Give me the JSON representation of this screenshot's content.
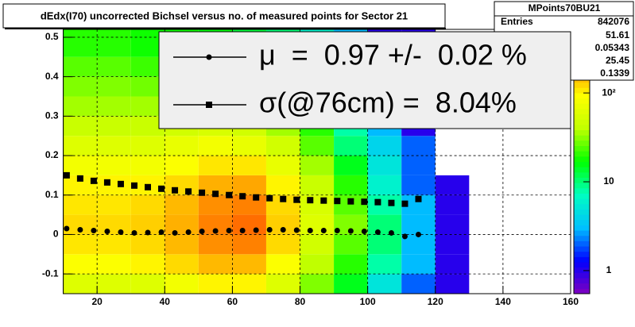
{
  "chart_data": {
    "type": "heatmap",
    "title": "dEdx(I70) uncorrected Bichsel versus no. of measured points for Sector 21",
    "xbins": [
      10,
      20,
      30,
      40,
      50,
      60,
      70,
      80,
      90,
      100,
      110,
      120,
      130
    ],
    "ybins": [
      -0.15,
      -0.1,
      -0.05,
      0,
      0.05,
      0.1,
      0.15,
      0.2,
      0.25,
      0.3,
      0.35,
      0.4,
      0.45,
      0.52
    ],
    "counts": [
      [
        60,
        60,
        60,
        80,
        100,
        100,
        60,
        30,
        15,
        5,
        2,
        1
      ],
      [
        90,
        90,
        100,
        120,
        150,
        150,
        90,
        40,
        20,
        8,
        3,
        1
      ],
      [
        110,
        110,
        120,
        150,
        200,
        220,
        120,
        50,
        25,
        10,
        3,
        1
      ],
      [
        120,
        120,
        130,
        160,
        220,
        250,
        130,
        60,
        30,
        10,
        3,
        1
      ],
      [
        110,
        110,
        120,
        150,
        200,
        220,
        120,
        55,
        25,
        8,
        3,
        1
      ],
      [
        100,
        100,
        100,
        120,
        160,
        170,
        100,
        45,
        20,
        6,
        2,
        1
      ],
      [
        80,
        80,
        80,
        90,
        110,
        110,
        70,
        35,
        15,
        5,
        2,
        0
      ],
      [
        60,
        60,
        60,
        70,
        80,
        70,
        50,
        25,
        10,
        4,
        2,
        0
      ],
      [
        45,
        45,
        45,
        50,
        55,
        50,
        35,
        20,
        8,
        3,
        1,
        0
      ],
      [
        35,
        35,
        35,
        40,
        40,
        35,
        25,
        15,
        6,
        2,
        1,
        0
      ],
      [
        30,
        30,
        28,
        30,
        30,
        25,
        18,
        10,
        5,
        2,
        1,
        0
      ],
      [
        25,
        25,
        22,
        22,
        22,
        18,
        13,
        8,
        4,
        2,
        1,
        0
      ],
      [
        20,
        20,
        18,
        18,
        16,
        13,
        10,
        6,
        3,
        1,
        1,
        0
      ]
    ],
    "palette": [
      "#8000c0",
      "#0000ff",
      "#00c0ff",
      "#00ffc0",
      "#00ff00",
      "#c0ff00",
      "#ffff00",
      "#ff8000",
      "#ff0000"
    ],
    "z_log": true,
    "zlim": [
      0.55,
      520
    ],
    "zticks": [
      1,
      10,
      {
        "value": 100,
        "label": "10²"
      }
    ],
    "xlim": [
      10,
      160
    ],
    "xticks": [
      20,
      40,
      60,
      80,
      100,
      120,
      140,
      160
    ],
    "ylim": [
      -0.15,
      0.52
    ],
    "yticks": [
      -0.1,
      0,
      0.1,
      0.2,
      0.3,
      0.4,
      0.5
    ],
    "grid": true,
    "x": [
      11,
      15,
      19,
      23,
      27,
      31,
      35,
      39,
      43,
      47,
      51,
      55,
      59,
      63,
      67,
      71,
      75,
      79,
      83,
      87,
      91,
      95,
      99,
      103,
      107,
      111,
      115
    ],
    "series": [
      {
        "name": "μ  =  0.97 +/-  0.02 %",
        "marker": "circle",
        "color": "#000000",
        "values": [
          0.015,
          0.012,
          0.01,
          0.008,
          0.006,
          0.004,
          0.005,
          0.006,
          0.004,
          0.006,
          0.008,
          0.009,
          0.01,
          0.01,
          0.011,
          0.012,
          0.012,
          0.011,
          0.01,
          0.01,
          0.01,
          0.009,
          0.008,
          0.006,
          0.004,
          -0.005,
          0.0
        ]
      },
      {
        "name": "σ(@76cm) =  8.04%",
        "marker": "square",
        "color": "#000000",
        "values": [
          0.15,
          0.142,
          0.136,
          0.132,
          0.128,
          0.124,
          0.12,
          0.116,
          0.112,
          0.109,
          0.106,
          0.103,
          0.1,
          0.097,
          0.094,
          0.092,
          0.09,
          0.088,
          0.087,
          0.086,
          0.085,
          0.084,
          0.083,
          0.082,
          0.08,
          0.078,
          0.09
        ]
      }
    ],
    "stats": {
      "title": "MPoints70BU21",
      "entries_label": "Entries",
      "entries": "842076",
      "values": [
        "51.61",
        "0.05343",
        "25.45",
        "0.1339"
      ]
    }
  }
}
